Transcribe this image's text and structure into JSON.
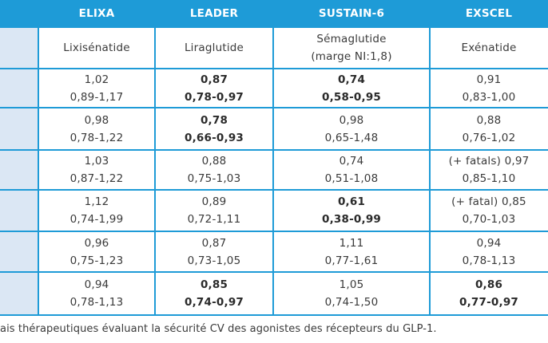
{
  "headers": [
    "ELIXA",
    "LEADER",
    "SUSTAIN-6",
    "EXSCEL"
  ],
  "drugs": [
    [
      "Lixisénatide"
    ],
    [
      "Liraglutide"
    ],
    [
      "Sémaglutide",
      "(marge NI:1,8)"
    ],
    [
      "Exénatide"
    ]
  ],
  "rows": [
    [
      {
        "value": "1,02",
        "ci": "0,89-1,17",
        "bold": false
      },
      {
        "value": "0,87",
        "ci": "0,78-0,97",
        "bold": true
      },
      {
        "value": "0,74",
        "ci": "0,58-0,95",
        "bold": true
      },
      {
        "value": "0,91",
        "ci": "0,83-1,00",
        "bold": false
      }
    ],
    [
      {
        "value": "0,98",
        "ci": "0,78-1,22",
        "bold": false
      },
      {
        "value": "0,78",
        "ci": "0,66-0,93",
        "bold": true
      },
      {
        "value": "0,98",
        "ci": "0,65-1,48",
        "bold": false
      },
      {
        "value": "0,88",
        "ci": "0,76-1,02",
        "bold": false
      }
    ],
    [
      {
        "value": "1,03",
        "ci": "0,87-1,22",
        "bold": false
      },
      {
        "value": "0,88",
        "ci": "0,75-1,03",
        "bold": false
      },
      {
        "value": "0,74",
        "ci": "0,51-1,08",
        "bold": false
      },
      {
        "value": "(+ fatals) 0,97",
        "ci": "0,85-1,10",
        "bold": false
      }
    ],
    [
      {
        "value": "1,12",
        "ci": "0,74-1,99",
        "bold": false
      },
      {
        "value": "0,89",
        "ci": "0,72-1,11",
        "bold": false
      },
      {
        "value": "0,61",
        "ci": "0,38-0,99",
        "bold": true
      },
      {
        "value": "(+ fatal) 0,85",
        "ci": "0,70-1,03",
        "bold": false
      }
    ],
    [
      {
        "value": "0,96",
        "ci": "0,75-1,23",
        "bold": false
      },
      {
        "value": "0,87",
        "ci": "0,73-1,05",
        "bold": false
      },
      {
        "value": "1,11",
        "ci": "0,77-1,61",
        "bold": false
      },
      {
        "value": "0,94",
        "ci": "0,78-1,13",
        "bold": false
      }
    ],
    [
      {
        "value": "0,94",
        "ci": "0,78-1,13",
        "bold": false
      },
      {
        "value": "0,85",
        "ci": "0,74-0,97",
        "bold": true
      },
      {
        "value": "1,05",
        "ci": "0,74-1,50",
        "bold": false
      },
      {
        "value": "0,86",
        "ci": "0,77-0,97",
        "bold": true
      }
    ]
  ],
  "caption": "ais thérapeutiques évaluant la sécurité CV des agonistes des récepteurs du GLP-1."
}
